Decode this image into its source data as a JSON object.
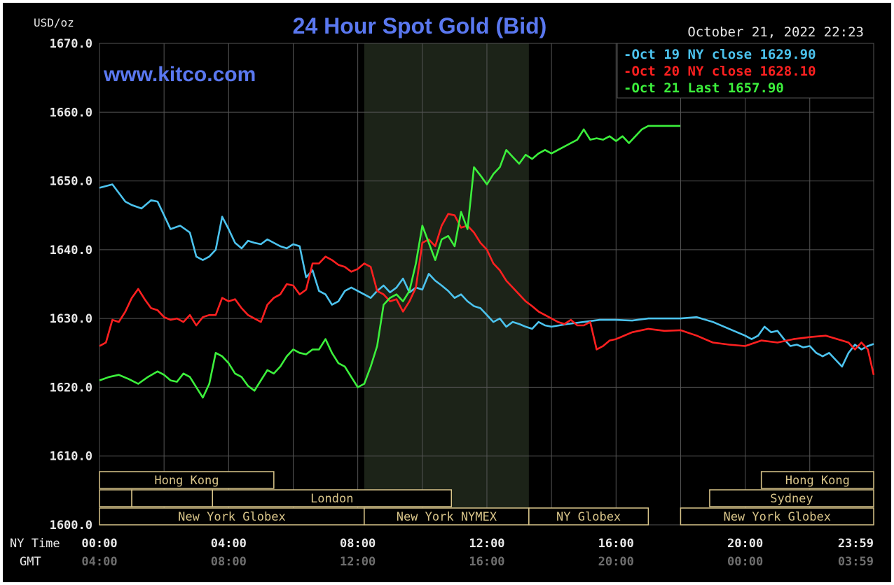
{
  "header": {
    "unit": "USD/oz",
    "title": "24 Hour Spot Gold (Bid)",
    "timestamp": "October 21, 2022 22:23",
    "watermark": "www.kitco.com"
  },
  "axis_labels": {
    "ny_time": "NY Time",
    "gmt": "GMT"
  },
  "colors": {
    "background": "#000000",
    "grid": "#555555",
    "axis_text": "#e8e8e8",
    "title": "#5a78f0",
    "oct19": "#4cc3ee",
    "oct20": "#ff2020",
    "oct21": "#3cf03c",
    "session_box": "#d9c58a",
    "shade": "#1c2318"
  },
  "legend": [
    {
      "dash": "-",
      "label": "Oct 19 NY close",
      "value": "1629.90",
      "color": "#4cc3ee"
    },
    {
      "dash": "-",
      "label": "Oct 20 NY close",
      "value": "1628.10",
      "color": "#ff2020"
    },
    {
      "dash": "-",
      "label": "Oct 21 Last",
      "value": "1657.90",
      "color": "#3cf03c"
    }
  ],
  "sessions": [
    {
      "name": "Hong Kong",
      "start": 0,
      "end": 5.4,
      "row": 0
    },
    {
      "name": "Hong Kong",
      "start": 20.5,
      "end": 23.98,
      "row": 0
    },
    {
      "name": "",
      "start": 0,
      "end": 1.0,
      "row": 1
    },
    {
      "name": "",
      "start": 1.0,
      "end": 3.5,
      "row": 1
    },
    {
      "name": "London",
      "start": 3.5,
      "end": 10.9,
      "row": 1
    },
    {
      "name": "Sydney",
      "start": 18.9,
      "end": 23.98,
      "row": 1
    },
    {
      "name": "New York Globex",
      "start": 0,
      "end": 8.2,
      "row": 2
    },
    {
      "name": "New York NYMEX",
      "start": 8.2,
      "end": 13.3,
      "row": 2
    },
    {
      "name": "NY Globex",
      "start": 13.3,
      "end": 17.0,
      "row": 2
    },
    {
      "name": "New York Globex",
      "start": 18.0,
      "end": 23.98,
      "row": 2
    }
  ],
  "chart_data": {
    "type": "line",
    "title": "24 Hour Spot Gold (Bid)",
    "ylabel": "USD/oz",
    "xlabel": "NY Time",
    "ylim": [
      1600,
      1670
    ],
    "xlim": [
      0,
      23.98
    ],
    "y_ticks": [
      "1600.0",
      "1610.0",
      "1620.0",
      "1630.0",
      "1640.0",
      "1650.0",
      "1660.0",
      "1670.0"
    ],
    "y_tick_values": [
      1600,
      1610,
      1620,
      1630,
      1640,
      1650,
      1660,
      1670
    ],
    "x_ticks_ny": [
      "00:00",
      "04:00",
      "08:00",
      "12:00",
      "16:00",
      "20:00",
      "23:59"
    ],
    "x_ticks_gmt": [
      "04:00",
      "08:00",
      "12:00",
      "16:00",
      "20:00",
      "00:00",
      "03:59"
    ],
    "x_tick_values": [
      0,
      4,
      8,
      12,
      16,
      20,
      23.98
    ],
    "nymex_shaded_hours": [
      8.2,
      13.3
    ],
    "series": [
      {
        "name": "Oct 19 NY close 1629.90",
        "color": "#4cc3ee",
        "x": [
          0,
          0.4,
          0.8,
          1.0,
          1.3,
          1.6,
          1.8,
          2.0,
          2.2,
          2.5,
          2.8,
          3.0,
          3.2,
          3.4,
          3.6,
          3.8,
          4.0,
          4.2,
          4.4,
          4.6,
          4.8,
          5.0,
          5.2,
          5.4,
          5.6,
          5.8,
          6.0,
          6.2,
          6.4,
          6.6,
          6.8,
          7.0,
          7.2,
          7.4,
          7.6,
          7.8,
          8.0,
          8.2,
          8.4,
          8.6,
          8.8,
          9.0,
          9.2,
          9.4,
          9.6,
          9.8,
          10.0,
          10.2,
          10.4,
          10.6,
          10.8,
          11.0,
          11.2,
          11.4,
          11.6,
          11.8,
          12.0,
          12.2,
          12.4,
          12.6,
          12.8,
          13.0,
          13.2,
          13.4,
          13.6,
          13.8,
          14.0,
          14.5,
          15.0,
          15.5,
          16.0,
          16.5,
          17.0,
          17.5,
          18.0,
          18.5,
          19.0,
          19.5,
          20.0,
          20.2,
          20.4,
          20.6,
          20.8,
          21.0,
          21.2,
          21.4,
          21.6,
          21.8,
          22.0,
          22.2,
          22.4,
          22.6,
          22.8,
          23.0,
          23.2,
          23.4,
          23.6,
          23.8,
          23.98
        ],
        "y": [
          1649,
          1649.5,
          1647,
          1646.5,
          1646,
          1647.2,
          1647,
          1645,
          1643,
          1643.5,
          1642.5,
          1639,
          1638.5,
          1639,
          1640,
          1644.8,
          1643,
          1641,
          1640.2,
          1641.3,
          1641,
          1640.8,
          1641.5,
          1641,
          1640.5,
          1640.2,
          1640.8,
          1640.5,
          1636,
          1637,
          1634,
          1633.5,
          1632,
          1632.5,
          1634,
          1634.5,
          1634,
          1633.5,
          1633,
          1634,
          1634.8,
          1633.8,
          1634.5,
          1635.8,
          1633.8,
          1634.5,
          1634.2,
          1636.5,
          1635.5,
          1634.8,
          1634,
          1633,
          1633.5,
          1632.5,
          1631.8,
          1631.5,
          1630.5,
          1629.5,
          1630,
          1628.8,
          1629.5,
          1629.2,
          1628.8,
          1628.5,
          1629.5,
          1629,
          1628.8,
          1629.2,
          1629.5,
          1629.8,
          1629.8,
          1629.7,
          1630,
          1630,
          1630,
          1630.2,
          1629.5,
          1628.5,
          1627.5,
          1627,
          1627.5,
          1628.8,
          1628,
          1628.2,
          1627,
          1626,
          1626.2,
          1625.8,
          1626,
          1625,
          1624.5,
          1625,
          1624,
          1623,
          1625,
          1626.2,
          1625.5,
          1626,
          1626.3
        ]
      },
      {
        "name": "Oct 20 NY close 1628.10",
        "color": "#ff2020",
        "x": [
          0,
          0.2,
          0.4,
          0.6,
          0.8,
          1.0,
          1.2,
          1.4,
          1.6,
          1.8,
          2.0,
          2.2,
          2.4,
          2.6,
          2.8,
          3.0,
          3.2,
          3.4,
          3.6,
          3.8,
          4.0,
          4.2,
          4.4,
          4.6,
          4.8,
          5.0,
          5.2,
          5.4,
          5.6,
          5.8,
          6.0,
          6.2,
          6.4,
          6.6,
          6.8,
          7.0,
          7.2,
          7.4,
          7.6,
          7.8,
          8.0,
          8.2,
          8.4,
          8.6,
          8.8,
          9.0,
          9.2,
          9.4,
          9.6,
          9.8,
          10.0,
          10.2,
          10.4,
          10.6,
          10.8,
          11.0,
          11.2,
          11.4,
          11.6,
          11.8,
          12.0,
          12.2,
          12.4,
          12.6,
          12.8,
          13.0,
          13.2,
          13.4,
          13.6,
          13.8,
          14.0,
          14.2,
          14.4,
          14.6,
          14.8,
          15.0,
          15.2,
          15.4,
          15.6,
          15.8,
          16.0,
          16.5,
          17.0,
          17.5,
          18.0,
          18.5,
          19.0,
          19.5,
          20.0,
          20.5,
          21.0,
          21.5,
          22.0,
          22.5,
          23.0,
          23.2,
          23.4,
          23.6,
          23.8,
          23.98
        ],
        "y": [
          1626,
          1626.5,
          1629.8,
          1629.5,
          1631,
          1633,
          1634.3,
          1632.8,
          1631.5,
          1631.2,
          1630.2,
          1629.8,
          1630,
          1629.5,
          1630.5,
          1629,
          1630.2,
          1630.5,
          1630.5,
          1633,
          1632.5,
          1632.8,
          1631.5,
          1630.5,
          1630,
          1629.5,
          1632,
          1633,
          1633.5,
          1635,
          1634.8,
          1633.5,
          1634.2,
          1638,
          1638,
          1639,
          1638.5,
          1637.8,
          1637.5,
          1636.8,
          1637.2,
          1638,
          1637.5,
          1634,
          1633.5,
          1632.5,
          1632.8,
          1631,
          1632.5,
          1634.5,
          1641,
          1641.5,
          1640.5,
          1643.5,
          1645.2,
          1645,
          1643.2,
          1643.5,
          1642.5,
          1641,
          1640,
          1638,
          1637,
          1635.5,
          1634.5,
          1633.5,
          1632.5,
          1631.8,
          1631,
          1630.5,
          1630,
          1629.5,
          1629.2,
          1629.8,
          1629,
          1629,
          1629.5,
          1625.5,
          1626,
          1626.8,
          1627,
          1628,
          1628.5,
          1628.2,
          1628.3,
          1627.5,
          1626.5,
          1626.2,
          1626,
          1626.8,
          1626.5,
          1627,
          1627.3,
          1627.5,
          1626.8,
          1626.5,
          1625.5,
          1626.5,
          1625.5,
          1621.8
        ]
      },
      {
        "name": "Oct 21 Last 1657.90",
        "color": "#3cf03c",
        "x": [
          0,
          0.3,
          0.6,
          0.9,
          1.2,
          1.5,
          1.8,
          2.0,
          2.2,
          2.4,
          2.6,
          2.8,
          3.0,
          3.2,
          3.4,
          3.6,
          3.8,
          4.0,
          4.2,
          4.4,
          4.6,
          4.8,
          5.0,
          5.2,
          5.4,
          5.6,
          5.8,
          6.0,
          6.2,
          6.4,
          6.6,
          6.8,
          7.0,
          7.2,
          7.4,
          7.6,
          7.8,
          8.0,
          8.2,
          8.4,
          8.6,
          8.8,
          9.0,
          9.2,
          9.4,
          9.6,
          9.8,
          10.0,
          10.2,
          10.4,
          10.6,
          10.8,
          11.0,
          11.2,
          11.4,
          11.6,
          11.8,
          12.0,
          12.2,
          12.4,
          12.6,
          12.8,
          13.0,
          13.2,
          13.4,
          13.6,
          13.8,
          14.0,
          14.2,
          14.4,
          14.6,
          14.8,
          15.0,
          15.2,
          15.4,
          15.6,
          15.8,
          16.0,
          16.2,
          16.4,
          16.6,
          16.8,
          17.0,
          17.5,
          17.99
        ],
        "y": [
          1621,
          1621.5,
          1621.8,
          1621.2,
          1620.5,
          1621.5,
          1622.3,
          1621.8,
          1621,
          1620.8,
          1622,
          1621.5,
          1620,
          1618.5,
          1620.5,
          1625,
          1624.5,
          1623.5,
          1622,
          1621.5,
          1620.2,
          1619.5,
          1621,
          1622.5,
          1622,
          1623,
          1624.5,
          1625.5,
          1625,
          1624.8,
          1625.5,
          1625.5,
          1627,
          1625,
          1623.5,
          1623,
          1621.5,
          1620,
          1620.5,
          1623,
          1626,
          1632,
          1633,
          1633.5,
          1632.5,
          1634,
          1638,
          1643.5,
          1641,
          1638.5,
          1641.5,
          1642,
          1640.5,
          1645.5,
          1643,
          1652,
          1650.8,
          1649.5,
          1651,
          1652,
          1654.5,
          1653.5,
          1652.5,
          1653.8,
          1653.2,
          1654,
          1654.5,
          1654,
          1654.5,
          1655,
          1655.5,
          1656,
          1657.5,
          1656,
          1656.2,
          1656,
          1656.5,
          1655.8,
          1656.5,
          1655.5,
          1656.5,
          1657.5,
          1658,
          1658,
          1658
        ]
      }
    ]
  }
}
